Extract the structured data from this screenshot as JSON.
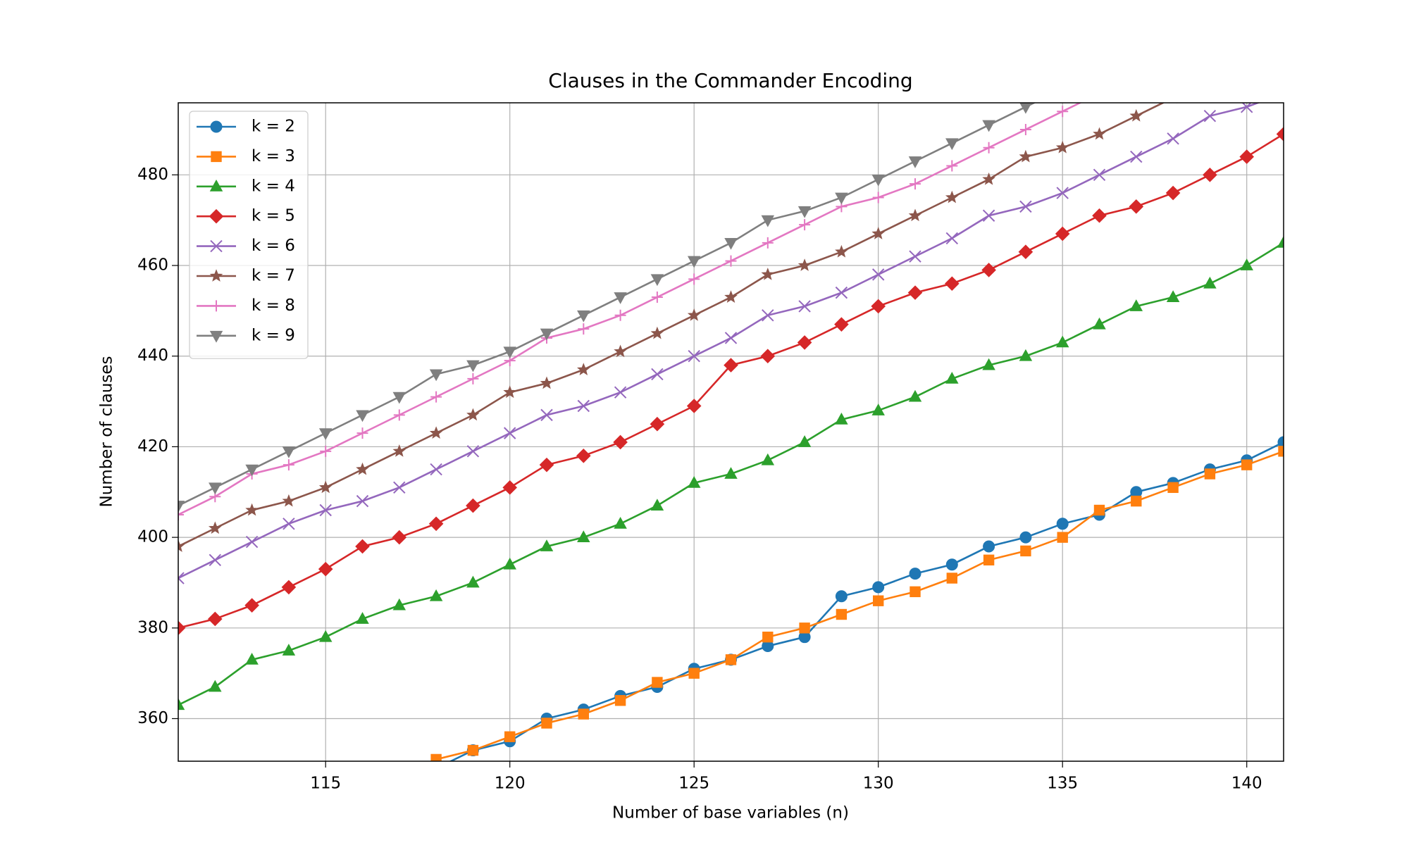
{
  "chart_data": {
    "type": "line",
    "title": "Clauses in the Commander Encoding",
    "xlabel": "Number of base variables (n)",
    "ylabel": "Number of clauses",
    "x": [
      111,
      112,
      113,
      114,
      115,
      116,
      117,
      118,
      119,
      120,
      121,
      122,
      123,
      124,
      125,
      126,
      127,
      128,
      129,
      130,
      131,
      132,
      133,
      134,
      135,
      136,
      137,
      138,
      139,
      140,
      141
    ],
    "xlim": [
      111,
      141
    ],
    "ylim": [
      350.6,
      495.9
    ],
    "xticks": [
      115,
      120,
      125,
      130,
      135,
      140
    ],
    "yticks": [
      360,
      380,
      400,
      420,
      440,
      460,
      480
    ],
    "grid": true,
    "legend": "upper left",
    "series": [
      {
        "name": "k = 2",
        "color": "#1f77b4",
        "marker": "circle",
        "values": [
          null,
          null,
          null,
          null,
          null,
          null,
          null,
          349,
          353,
          355,
          360,
          362,
          365,
          367,
          371,
          373,
          376,
          378,
          387,
          389,
          392,
          394,
          398,
          400,
          403,
          405,
          410,
          412,
          415,
          417,
          421
        ]
      },
      {
        "name": "k = 3",
        "color": "#ff7f0e",
        "marker": "square",
        "values": [
          null,
          null,
          null,
          null,
          null,
          null,
          null,
          351,
          353,
          356,
          359,
          361,
          364,
          368,
          370,
          373,
          378,
          380,
          383,
          386,
          388,
          391,
          395,
          397,
          400,
          406,
          408,
          411,
          414,
          416,
          419
        ]
      },
      {
        "name": "k = 4",
        "color": "#2ca02c",
        "marker": "triangle-up",
        "values": [
          363,
          367,
          373,
          375,
          378,
          382,
          385,
          387,
          390,
          394,
          398,
          400,
          403,
          407,
          412,
          414,
          417,
          421,
          426,
          428,
          431,
          435,
          438,
          440,
          443,
          447,
          451,
          453,
          456,
          460,
          465
        ]
      },
      {
        "name": "k = 5",
        "color": "#d62728",
        "marker": "diamond",
        "values": [
          380,
          382,
          385,
          389,
          393,
          398,
          400,
          403,
          407,
          411,
          416,
          418,
          421,
          425,
          429,
          438,
          440,
          443,
          447,
          451,
          454,
          456,
          459,
          463,
          467,
          471,
          473,
          476,
          480,
          484,
          489
        ]
      },
      {
        "name": "k = 6",
        "color": "#9467bd",
        "marker": "x",
        "values": [
          391,
          395,
          399,
          403,
          406,
          408,
          411,
          415,
          419,
          423,
          427,
          429,
          432,
          436,
          440,
          444,
          449,
          451,
          454,
          458,
          462,
          466,
          471,
          473,
          476,
          480,
          484,
          488,
          493,
          495,
          498
        ]
      },
      {
        "name": "k = 7",
        "color": "#8c564b",
        "marker": "star",
        "values": [
          398,
          402,
          406,
          408,
          411,
          415,
          419,
          423,
          427,
          432,
          434,
          437,
          441,
          445,
          449,
          453,
          458,
          460,
          463,
          467,
          471,
          475,
          479,
          484,
          486,
          489,
          493,
          497,
          null,
          null,
          null
        ]
      },
      {
        "name": "k = 8",
        "color": "#e377c2",
        "marker": "plus",
        "values": [
          405,
          409,
          414,
          416,
          419,
          423,
          427,
          431,
          435,
          439,
          444,
          446,
          449,
          453,
          457,
          461,
          465,
          469,
          473,
          475,
          478,
          482,
          486,
          490,
          494,
          498,
          null,
          null,
          null,
          null,
          null
        ]
      },
      {
        "name": "k = 9",
        "color": "#7f7f7f",
        "marker": "triangle-down",
        "values": [
          407,
          411,
          415,
          419,
          423,
          427,
          431,
          436,
          438,
          441,
          445,
          449,
          453,
          457,
          461,
          465,
          470,
          472,
          475,
          479,
          483,
          487,
          491,
          495,
          499,
          null,
          null,
          null,
          null,
          null,
          null
        ]
      }
    ]
  }
}
